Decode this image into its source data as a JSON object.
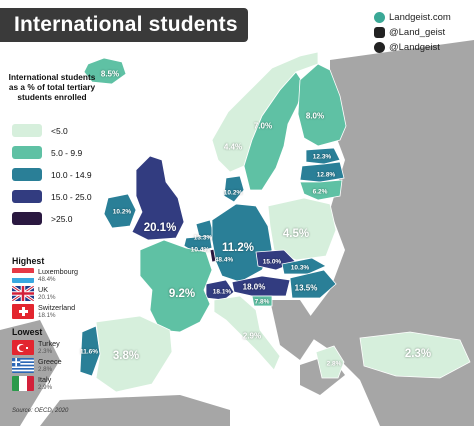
{
  "title": "International students",
  "brand": {
    "site": "Landgeist.com",
    "instagram": "@Land_geist",
    "twitter": "@Landgeist",
    "icons": [
      "globe-icon",
      "instagram-icon",
      "twitter-icon"
    ]
  },
  "legend": {
    "title": "International students as a % of total tertiary students enrolled",
    "bins": [
      {
        "label": "<5.0",
        "color": "#d6efdc"
      },
      {
        "label": "5.0 - 9.9",
        "color": "#5fc1a4"
      },
      {
        "label": "10.0 - 14.9",
        "color": "#2a7f97"
      },
      {
        "label": "15.0 - 25.0",
        "color": "#323c80"
      },
      {
        "label": ">25.0",
        "color": "#2a1840"
      }
    ]
  },
  "highest": {
    "heading": "Highest",
    "items": [
      {
        "country": "Luxembourg",
        "value": "48.4%",
        "flag": "luxembourg"
      },
      {
        "country": "UK",
        "value": "20.1%",
        "flag": "uk"
      },
      {
        "country": "Switzerland",
        "value": "18.1%",
        "flag": "switzerland"
      }
    ]
  },
  "lowest": {
    "heading": "Lowest",
    "items": [
      {
        "country": "Turkey",
        "value": "2.3%",
        "flag": "turkey"
      },
      {
        "country": "Greece",
        "value": "2.8%",
        "flag": "greece"
      },
      {
        "country": "Italy",
        "value": "2.9%",
        "flag": "italy"
      }
    ]
  },
  "source": "Source: OECD, 2020",
  "colors": {
    "no_data": "#a6a6a6",
    "sea": "#ffffff",
    "border": "#ffffff",
    "title_bg": "#3a3a3a"
  },
  "countries": [
    {
      "name": "Iceland",
      "value": 8.5,
      "label": "8.5%"
    },
    {
      "name": "Norway",
      "value": 4.4,
      "label": "4.4%"
    },
    {
      "name": "Sweden",
      "value": 7.0,
      "label": "7.0%"
    },
    {
      "name": "Finland",
      "value": 8.0,
      "label": "8.0%"
    },
    {
      "name": "Estonia",
      "value": 12.3,
      "label": "12.3%"
    },
    {
      "name": "Latvia",
      "value": 12.8,
      "label": "12.8%"
    },
    {
      "name": "Lithuania",
      "value": 6.2,
      "label": "6.2%"
    },
    {
      "name": "Denmark",
      "value": 10.2,
      "label": "10.2%"
    },
    {
      "name": "Ireland",
      "value": 10.2,
      "label": "10.2%"
    },
    {
      "name": "UK",
      "value": 20.1,
      "label": "20.1%"
    },
    {
      "name": "Netherlands",
      "value": 13.3,
      "label": "13.3%"
    },
    {
      "name": "Belgium",
      "value": 10.4,
      "label": "10.4%"
    },
    {
      "name": "Luxembourg",
      "value": 48.4,
      "label": "48.4%"
    },
    {
      "name": "Germany",
      "value": 11.2,
      "label": "11.2%"
    },
    {
      "name": "Poland",
      "value": 4.5,
      "label": "4.5%"
    },
    {
      "name": "Czechia",
      "value": 15.0,
      "label": "15.0%"
    },
    {
      "name": "Slovakia",
      "value": 10.3,
      "label": "10.3%"
    },
    {
      "name": "Austria",
      "value": 18.0,
      "label": "18.0%"
    },
    {
      "name": "Hungary",
      "value": 13.5,
      "label": "13.5%"
    },
    {
      "name": "Switzerland",
      "value": 18.1,
      "label": "18.1%"
    },
    {
      "name": "Slovenia",
      "value": 7.8,
      "label": "7.8%"
    },
    {
      "name": "France",
      "value": 9.2,
      "label": "9.2%"
    },
    {
      "name": "Portugal",
      "value": 11.6,
      "label": "11.6%"
    },
    {
      "name": "Spain",
      "value": 3.8,
      "label": "3.8%"
    },
    {
      "name": "Italy",
      "value": 2.9,
      "label": "2.9%"
    },
    {
      "name": "Greece",
      "value": 2.8,
      "label": "2.8%"
    },
    {
      "name": "Turkey",
      "value": 2.3,
      "label": "2.3%"
    }
  ]
}
